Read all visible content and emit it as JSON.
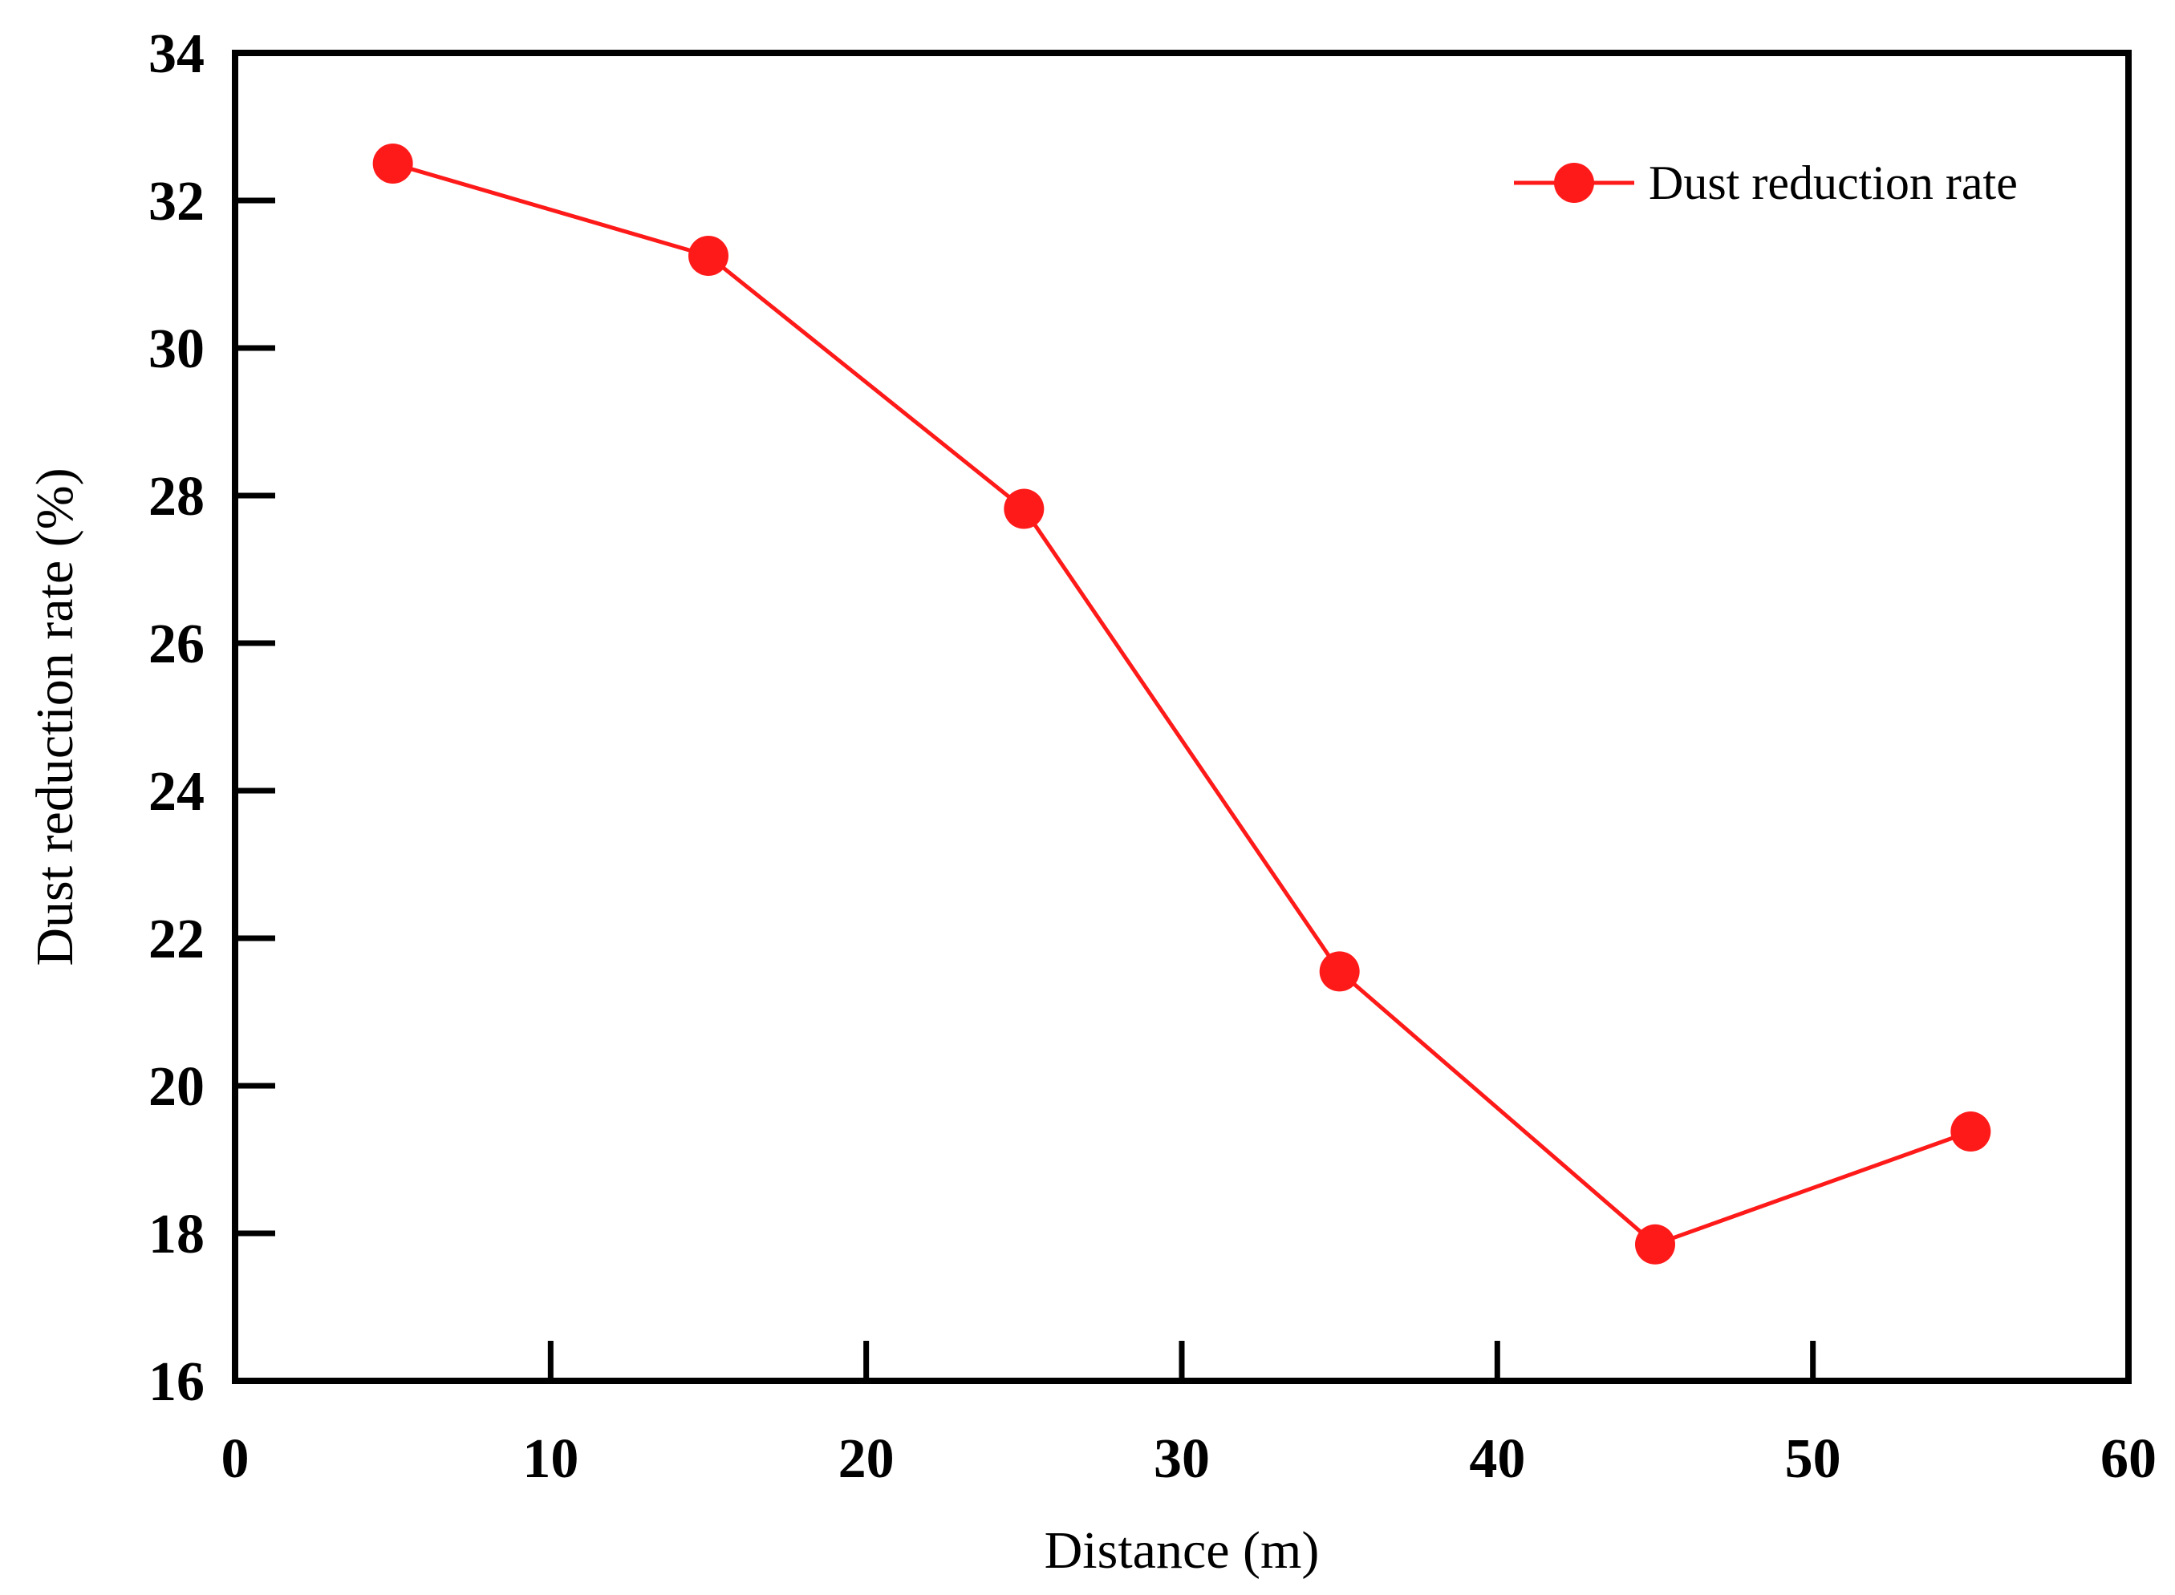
{
  "chart_data": {
    "type": "line",
    "title": "",
    "xlabel": "Distance (m)",
    "ylabel": "Dust reduction rate (%)",
    "xlim": [
      0,
      60
    ],
    "ylim": [
      16,
      34
    ],
    "xticks": [
      0,
      10,
      20,
      30,
      40,
      50,
      60
    ],
    "yticks": [
      16,
      18,
      20,
      22,
      24,
      26,
      28,
      30,
      32,
      34
    ],
    "grid": false,
    "legend_position": "top-right",
    "series": [
      {
        "name": "Dust reduction rate",
        "color": "#ff1a1a",
        "marker": "circle",
        "x": [
          5,
          15,
          25,
          35,
          45,
          55
        ],
        "y": [
          32.5,
          31.25,
          27.82,
          21.55,
          17.85,
          19.38
        ]
      }
    ]
  }
}
